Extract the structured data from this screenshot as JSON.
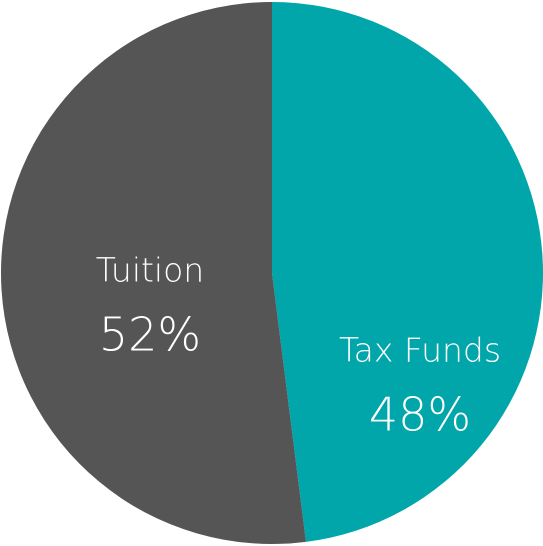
{
  "chart_data": {
    "type": "pie",
    "categories": [
      "Tax Funds",
      "Tuition"
    ],
    "values": [
      48,
      52
    ],
    "value_labels": [
      "48%",
      "52%"
    ],
    "colors": [
      "#00a6a9",
      "#555555"
    ]
  }
}
